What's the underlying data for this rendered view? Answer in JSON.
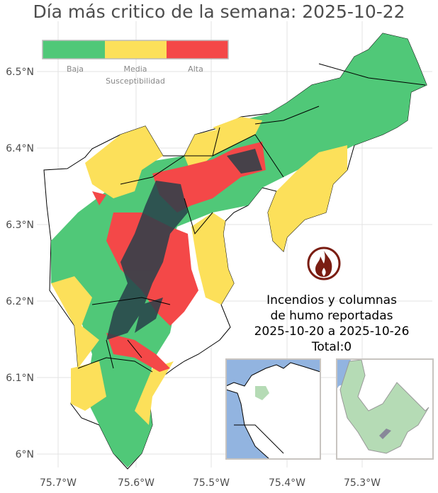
{
  "title": "Día más critico de la semana: 2025-10-22",
  "axes": {
    "x_ticks": [
      "75.7°W",
      "75.6°W",
      "75.5°W",
      "75.4°W",
      "75.3°W"
    ],
    "y_ticks": [
      "6.5°N",
      "6.4°N",
      "6.3°N",
      "6.2°N",
      "6.1°N",
      "6°N"
    ]
  },
  "legend": {
    "title": "Susceptibilidad",
    "items": [
      {
        "label": "Baja",
        "color": "#50c878"
      },
      {
        "label": "Media",
        "color": "#fce05a"
      },
      {
        "label": "Alta",
        "color": "#f44848"
      }
    ]
  },
  "fire_report": {
    "icon": "fire-icon",
    "line1": "Incendios y columnas",
    "line2": "de humo reportadas",
    "line3": "2025-10-20 a 2025-10-26",
    "line4": "Total:0"
  },
  "colors": {
    "sea": "#92b4e0",
    "region_highlight": "#b5dbb5",
    "dense_cluster": "#28404a"
  }
}
